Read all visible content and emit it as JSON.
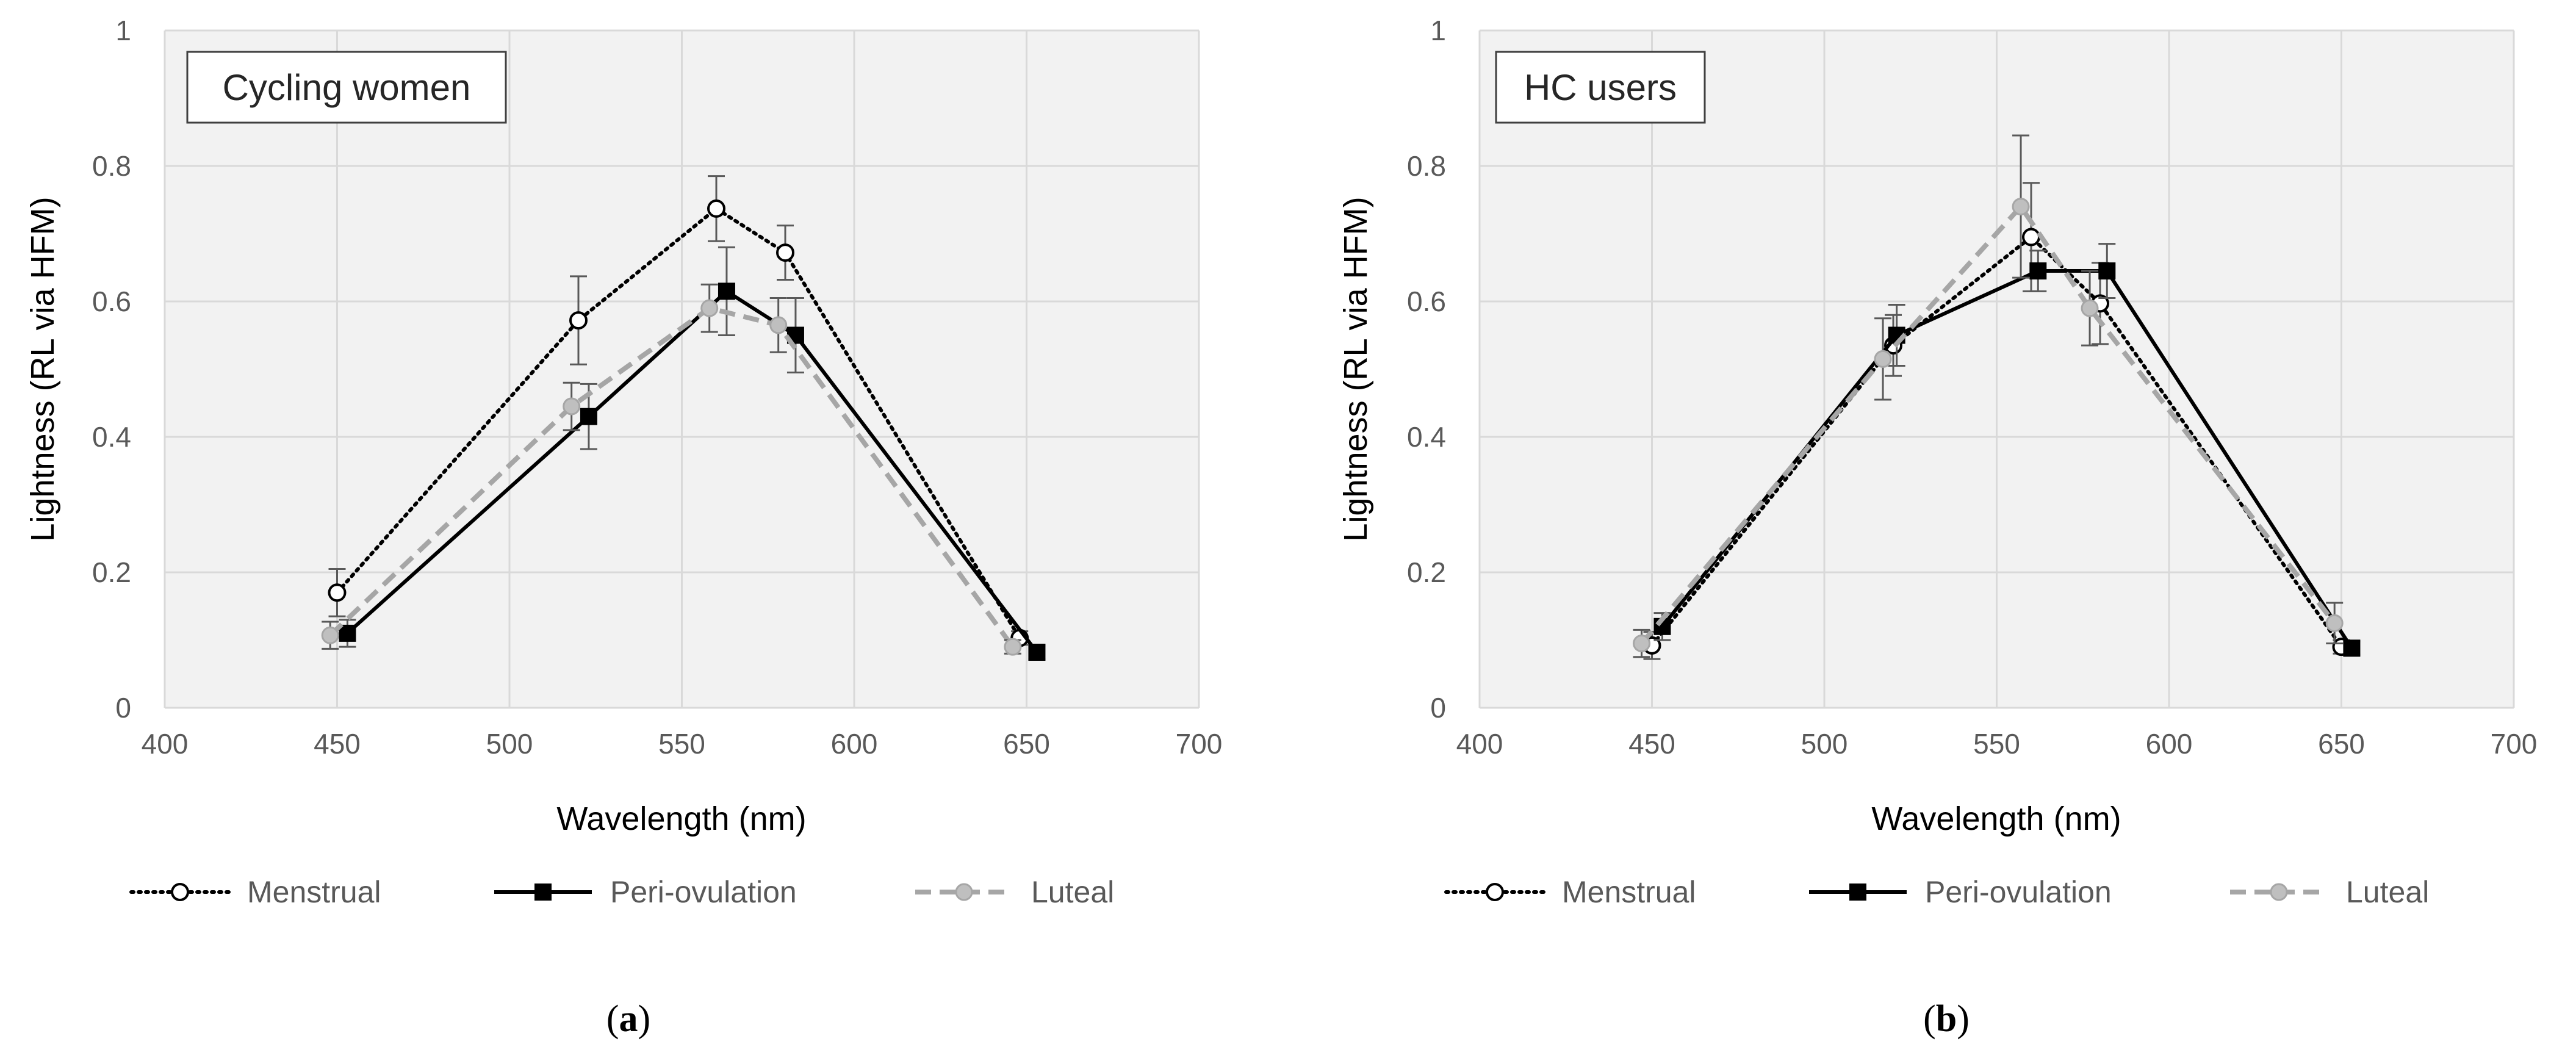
{
  "chart_data": [
    {
      "type": "line",
      "title": "Cycling women",
      "panel_label": "(a)",
      "panel_letter": "a",
      "xlabel": "Wavelength (nm)",
      "ylabel": "Lightness (RL via HFM)",
      "xlim": [
        400,
        700
      ],
      "ylim": [
        0,
        1
      ],
      "xticks": [
        "400",
        "450",
        "500",
        "550",
        "600",
        "650",
        "700"
      ],
      "yticks": [
        "0",
        "0.2",
        "0.4",
        "0.6",
        "0.8",
        "1"
      ],
      "grid": true,
      "legend_position": "bottom",
      "series": [
        {
          "name": "Menstrual",
          "style": "dotted",
          "marker": "open-circle",
          "color": "#000000",
          "x": [
            450,
            520,
            560,
            580,
            648
          ],
          "y": [
            0.17,
            0.572,
            0.737,
            0.672,
            0.103
          ],
          "err": [
            0.035,
            0.065,
            0.048,
            0.04,
            0.01
          ]
        },
        {
          "name": "Peri-ovulation",
          "style": "solid",
          "marker": "filled-square",
          "color": "#000000",
          "x": [
            453,
            523,
            563,
            583,
            653
          ],
          "y": [
            0.11,
            0.43,
            0.615,
            0.55,
            0.082
          ],
          "err": [
            0.02,
            0.048,
            0.065,
            0.055,
            0.01
          ]
        },
        {
          "name": "Luteal",
          "style": "dashed",
          "marker": "grey-circle",
          "color": "#a6a6a6",
          "x": [
            448,
            518,
            558,
            578,
            646
          ],
          "y": [
            0.107,
            0.445,
            0.59,
            0.565,
            0.09
          ],
          "err": [
            0.02,
            0.035,
            0.035,
            0.04,
            0.01
          ]
        }
      ]
    },
    {
      "type": "line",
      "title": "HC users",
      "panel_label": "(b)",
      "panel_letter": "b",
      "xlabel": "Wavelength (nm)",
      "ylabel": "Lightness (RL via HFM)",
      "xlim": [
        400,
        700
      ],
      "ylim": [
        0,
        1
      ],
      "xticks": [
        "400",
        "450",
        "500",
        "550",
        "600",
        "650",
        "700"
      ],
      "yticks": [
        "0",
        "0.2",
        "0.4",
        "0.6",
        "0.8",
        "1"
      ],
      "grid": true,
      "legend_position": "bottom",
      "series": [
        {
          "name": "Menstrual",
          "style": "dotted",
          "marker": "open-circle",
          "color": "#000000",
          "x": [
            450,
            520,
            560,
            580,
            650
          ],
          "y": [
            0.092,
            0.535,
            0.695,
            0.597,
            0.09
          ],
          "err": [
            0.02,
            0.045,
            0.08,
            0.06,
            0.01
          ]
        },
        {
          "name": "Peri-ovulation",
          "style": "solid",
          "marker": "filled-square",
          "color": "#000000",
          "x": [
            453,
            521,
            562,
            582,
            653
          ],
          "y": [
            0.12,
            0.55,
            0.645,
            0.645,
            0.088
          ],
          "err": [
            0.02,
            0.045,
            0.03,
            0.04,
            0.01
          ]
        },
        {
          "name": "Luteal",
          "style": "dashed",
          "marker": "grey-circle",
          "color": "#a6a6a6",
          "x": [
            447,
            517,
            557,
            577,
            648
          ],
          "y": [
            0.095,
            0.515,
            0.74,
            0.59,
            0.125
          ],
          "err": [
            0.02,
            0.06,
            0.105,
            0.055,
            0.03
          ]
        }
      ]
    }
  ]
}
